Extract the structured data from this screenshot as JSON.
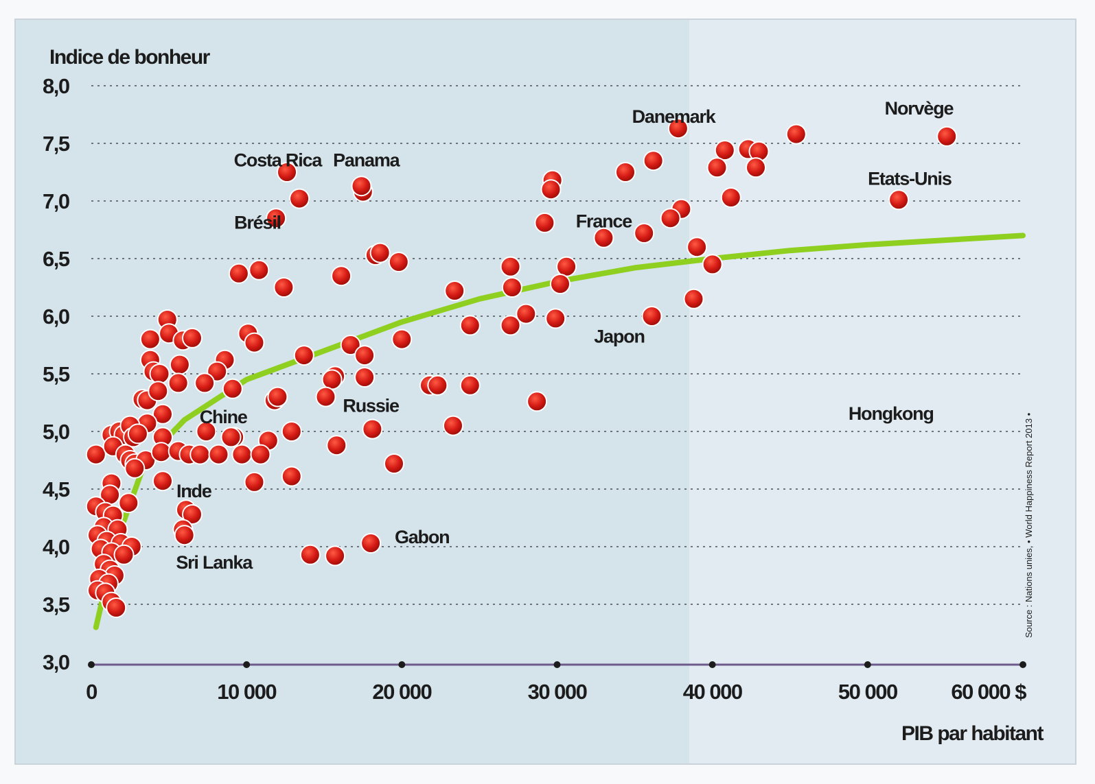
{
  "chart_data": {
    "type": "scatter",
    "ylabel": "Indice de bonheur",
    "xlabel": "PIB par habitant",
    "x_tick_labels": [
      "0",
      "10 000",
      "20 000",
      "30 000",
      "40 000",
      "50 000",
      "60 000 $"
    ],
    "y_tick_labels": [
      "3,0",
      "3,5",
      "4,0",
      "4,5",
      "5,0",
      "5,5",
      "6,0",
      "6,5",
      "7,0",
      "7,5",
      "8,0"
    ],
    "xlim": [
      0,
      60000
    ],
    "ylim": [
      3.0,
      8.0
    ],
    "grid": "horizontal dotted",
    "source": "Source : Nations unies, • World Happiness Report 2013 •",
    "colors": {
      "points": "#d41a14",
      "trend": "#8fcf1f",
      "background_left": "#d5e3ea",
      "background_right": "#e1ebf1"
    },
    "labels": [
      {
        "text": "Danemark",
        "x": 37500,
        "y": 7.68
      },
      {
        "text": "Norvège",
        "x": 53300,
        "y": 7.75
      },
      {
        "text": "Costa Rica",
        "x": 12000,
        "y": 7.3
      },
      {
        "text": "Panama",
        "x": 17700,
        "y": 7.3
      },
      {
        "text": "Etats-Unis",
        "x": 52700,
        "y": 7.14
      },
      {
        "text": "Brésil",
        "x": 10700,
        "y": 6.76
      },
      {
        "text": "France",
        "x": 33000,
        "y": 6.77
      },
      {
        "text": "Japon",
        "x": 34000,
        "y": 5.77
      },
      {
        "text": "Chine",
        "x": 8500,
        "y": 5.07
      },
      {
        "text": "Russie",
        "x": 18000,
        "y": 5.17
      },
      {
        "text": "Hongkong",
        "x": 51500,
        "y": 5.1
      },
      {
        "text": "Inde",
        "x": 6600,
        "y": 4.43
      },
      {
        "text": "Gabon",
        "x": 21300,
        "y": 4.03
      },
      {
        "text": "Sri Lanka",
        "x": 7900,
        "y": 3.81
      }
    ],
    "trend": [
      [
        300,
        3.3
      ],
      [
        1500,
        4.0
      ],
      [
        3500,
        4.75
      ],
      [
        6000,
        5.1
      ],
      [
        10000,
        5.45
      ],
      [
        15000,
        5.7
      ],
      [
        20000,
        5.95
      ],
      [
        25000,
        6.15
      ],
      [
        30000,
        6.3
      ],
      [
        35000,
        6.42
      ],
      [
        40000,
        6.5
      ],
      [
        45000,
        6.57
      ],
      [
        50000,
        6.62
      ],
      [
        55000,
        6.66
      ],
      [
        60000,
        6.7
      ]
    ],
    "points": [
      [
        37800,
        7.63
      ],
      [
        45400,
        7.58
      ],
      [
        55100,
        7.56
      ],
      [
        40800,
        7.44
      ],
      [
        42300,
        7.45
      ],
      [
        43000,
        7.43
      ],
      [
        36200,
        7.35
      ],
      [
        40300,
        7.29
      ],
      [
        42800,
        7.29
      ],
      [
        34400,
        7.25
      ],
      [
        29700,
        7.18
      ],
      [
        29600,
        7.1
      ],
      [
        41200,
        7.03
      ],
      [
        52000,
        7.01
      ],
      [
        38000,
        6.93
      ],
      [
        37300,
        6.85
      ],
      [
        29200,
        6.81
      ],
      [
        35600,
        6.72
      ],
      [
        39000,
        6.6
      ],
      [
        40000,
        6.45
      ],
      [
        30600,
        6.43
      ],
      [
        27000,
        6.43
      ],
      [
        30200,
        6.28
      ],
      [
        27100,
        6.25
      ],
      [
        38800,
        6.15
      ],
      [
        36100,
        6.0
      ],
      [
        28000,
        6.02
      ],
      [
        29900,
        5.98
      ],
      [
        27000,
        5.92
      ],
      [
        24400,
        5.92
      ],
      [
        23400,
        6.22
      ],
      [
        20000,
        5.8
      ],
      [
        33000,
        6.68
      ],
      [
        12600,
        7.25
      ],
      [
        13400,
        7.02
      ],
      [
        17500,
        7.08
      ],
      [
        17400,
        7.13
      ],
      [
        11900,
        6.85
      ],
      [
        18300,
        6.53
      ],
      [
        18600,
        6.55
      ],
      [
        19800,
        6.47
      ],
      [
        9500,
        6.37
      ],
      [
        10800,
        6.4
      ],
      [
        16100,
        6.35
      ],
      [
        12400,
        6.25
      ],
      [
        10100,
        5.85
      ],
      [
        10500,
        5.77
      ],
      [
        13700,
        5.66
      ],
      [
        16700,
        5.75
      ],
      [
        17600,
        5.66
      ],
      [
        15700,
        5.48
      ],
      [
        15500,
        5.45
      ],
      [
        17600,
        5.47
      ],
      [
        15100,
        5.3
      ],
      [
        21800,
        5.4
      ],
      [
        22300,
        5.4
      ],
      [
        24400,
        5.4
      ],
      [
        28700,
        5.26
      ],
      [
        11800,
        5.27
      ],
      [
        12000,
        5.3
      ],
      [
        23300,
        5.05
      ],
      [
        18100,
        5.02
      ],
      [
        15800,
        4.88
      ],
      [
        19500,
        4.72
      ],
      [
        12900,
        5.0
      ],
      [
        11400,
        4.92
      ],
      [
        9200,
        4.95
      ],
      [
        9700,
        4.8
      ],
      [
        10900,
        4.8
      ],
      [
        10500,
        4.56
      ],
      [
        12900,
        4.61
      ],
      [
        4900,
        5.97
      ],
      [
        5000,
        5.85
      ],
      [
        5900,
        5.79
      ],
      [
        6500,
        5.81
      ],
      [
        3800,
        5.8
      ],
      [
        3800,
        5.62
      ],
      [
        4000,
        5.52
      ],
      [
        4400,
        5.5
      ],
      [
        5700,
        5.58
      ],
      [
        8600,
        5.62
      ],
      [
        8100,
        5.52
      ],
      [
        5600,
        5.42
      ],
      [
        7300,
        5.42
      ],
      [
        9100,
        5.37
      ],
      [
        3300,
        5.28
      ],
      [
        3600,
        5.27
      ],
      [
        4300,
        5.35
      ],
      [
        4600,
        5.15
      ],
      [
        3600,
        5.07
      ],
      [
        7400,
        5.0
      ],
      [
        9000,
        4.95
      ],
      [
        4600,
        4.95
      ],
      [
        1300,
        4.97
      ],
      [
        1800,
        5.0
      ],
      [
        2100,
        4.97
      ],
      [
        2500,
        5.05
      ],
      [
        2700,
        4.95
      ],
      [
        3000,
        4.98
      ],
      [
        300,
        4.8
      ],
      [
        1400,
        4.87
      ],
      [
        2200,
        4.8
      ],
      [
        2500,
        4.75
      ],
      [
        2800,
        4.72
      ],
      [
        3500,
        4.75
      ],
      [
        4500,
        4.82
      ],
      [
        5600,
        4.83
      ],
      [
        6300,
        4.8
      ],
      [
        7000,
        4.8
      ],
      [
        8200,
        4.8
      ],
      [
        2800,
        4.68
      ],
      [
        4600,
        4.57
      ],
      [
        1300,
        4.55
      ],
      [
        1200,
        4.45
      ],
      [
        2400,
        4.38
      ],
      [
        6100,
        4.32
      ],
      [
        6500,
        4.28
      ],
      [
        5900,
        4.15
      ],
      [
        6000,
        4.1
      ],
      [
        300,
        4.35
      ],
      [
        900,
        4.3
      ],
      [
        1400,
        4.27
      ],
      [
        800,
        4.17
      ],
      [
        1700,
        4.15
      ],
      [
        400,
        4.1
      ],
      [
        1000,
        4.05
      ],
      [
        1900,
        4.03
      ],
      [
        2600,
        4.0
      ],
      [
        600,
        3.98
      ],
      [
        1300,
        3.95
      ],
      [
        2100,
        3.93
      ],
      [
        800,
        3.85
      ],
      [
        1200,
        3.8
      ],
      [
        1500,
        3.75
      ],
      [
        500,
        3.72
      ],
      [
        1100,
        3.68
      ],
      [
        400,
        3.62
      ],
      [
        900,
        3.6
      ],
      [
        1300,
        3.52
      ],
      [
        1600,
        3.47
      ],
      [
        14100,
        3.93
      ],
      [
        15700,
        3.92
      ],
      [
        18000,
        4.03
      ]
    ]
  }
}
